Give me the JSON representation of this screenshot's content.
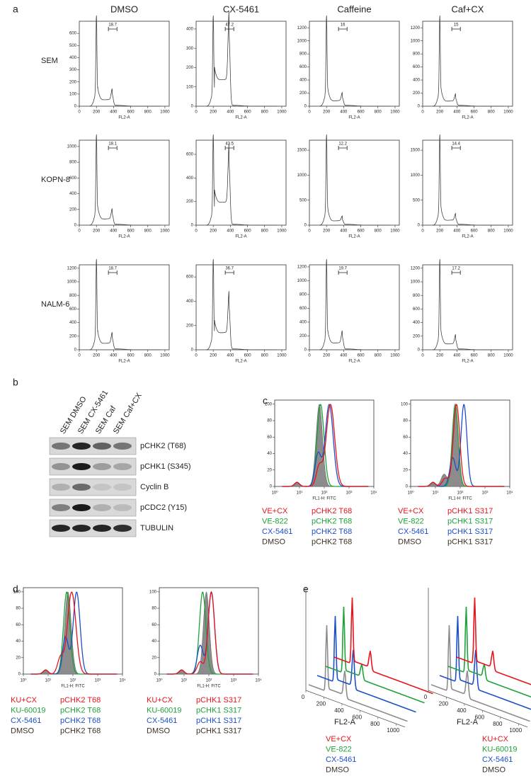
{
  "panel_a": {
    "label": "a",
    "columns": [
      "DMSO",
      "CX-5461",
      "Caffeine",
      "Caf+CX"
    ],
    "x_label": "FL2-A",
    "xlim": [
      0,
      1050
    ],
    "xticks": [
      0,
      200,
      400,
      600,
      800,
      1000
    ],
    "rows": [
      {
        "label": "SEM",
        "plots": [
          {
            "ylim": [
              0,
              700
            ],
            "yticks": [
              0,
              100,
              200,
              300,
              400,
              500,
              600
            ],
            "gate": "18.7"
          },
          {
            "ylim": [
              0,
              440
            ],
            "yticks": [
              0,
              100,
              200,
              300,
              400
            ],
            "gate": "47.2"
          },
          {
            "ylim": [
              0,
              1300
            ],
            "yticks": [
              0,
              200,
              400,
              600,
              800,
              1000,
              1200
            ],
            "gate": "16"
          },
          {
            "ylim": [
              0,
              1300
            ],
            "yticks": [
              0,
              200,
              400,
              600,
              800,
              1000,
              1200
            ],
            "gate": "15"
          }
        ]
      },
      {
        "label": "KOPN-8",
        "plots": [
          {
            "ylim": [
              0,
              1080
            ],
            "yticks": [
              0,
              200,
              400,
              600,
              800,
              1000
            ],
            "gate": "18.1"
          },
          {
            "ylim": [
              0,
              720
            ],
            "yticks": [
              0,
              200,
              400,
              600
            ],
            "gate": "43.5"
          },
          {
            "ylim": [
              0,
              1700
            ],
            "yticks": [
              0,
              500,
              1000,
              1500
            ],
            "gate": "12.2"
          },
          {
            "ylim": [
              0,
              1700
            ],
            "yticks": [
              0,
              500,
              1000,
              1500
            ],
            "gate": "14.4"
          }
        ]
      },
      {
        "label": "NALM-6",
        "plots": [
          {
            "ylim": [
              0,
              1250
            ],
            "yticks": [
              0,
              200,
              400,
              600,
              800,
              1000,
              1200
            ],
            "gate": "18.7"
          },
          {
            "ylim": [
              0,
              700
            ],
            "yticks": [
              0,
              200,
              400,
              600
            ],
            "gate": "36.7"
          },
          {
            "ylim": [
              0,
              1230
            ],
            "yticks": [
              0,
              200,
              400,
              600,
              800,
              1000,
              1200
            ],
            "gate": "19.7"
          },
          {
            "ylim": [
              0,
              1250
            ],
            "yticks": [
              0,
              200,
              400,
              600,
              800,
              1000,
              1200
            ],
            "gate": "17.2"
          }
        ]
      }
    ]
  },
  "panel_b": {
    "label": "b",
    "lanes": [
      "SEM DMSO",
      "SEM CX-5461",
      "SEM Caf",
      "SEM Caf+CX"
    ],
    "bands": [
      "pCHK2 (T68)",
      "pCHK1 (S345)",
      "Cyclin B",
      "pCDC2 (Y15)",
      "TUBULIN"
    ]
  },
  "panel_c": {
    "label": "c",
    "x_label": "FL1-H: FITC",
    "xlim": [
      0,
      4
    ],
    "ylim": [
      0,
      105
    ],
    "xticks": [
      {
        "value": 0,
        "label": "10⁰"
      },
      {
        "value": 1,
        "label": "10¹"
      },
      {
        "value": 2,
        "label": "10²"
      },
      {
        "value": 3,
        "label": "10³"
      },
      {
        "value": 4,
        "label": "10⁴"
      }
    ],
    "yticks": [
      0,
      20,
      40,
      60,
      80,
      100
    ],
    "plots": [
      {
        "legend": [
          {
            "sample": "VE+CX",
            "target": "pCHK2 T68",
            "color": "#e8141c"
          },
          {
            "sample": "VE-822",
            "target": "pCHK2 T68",
            "color": "#1fa23a"
          },
          {
            "sample": "CX-5461",
            "target": "pCHK2 T68",
            "color": "#1d4fc8"
          },
          {
            "sample": "DMSO",
            "target": "pCHK2 T68",
            "color": "#3b3024"
          }
        ]
      },
      {
        "legend": [
          {
            "sample": "VE+CX",
            "target": "pCHK1 S317",
            "color": "#e8141c"
          },
          {
            "sample": "VE-822",
            "target": "pCHK1 S317",
            "color": "#1fa23a"
          },
          {
            "sample": "CX-5461",
            "target": "pCHK1 S317",
            "color": "#1d4fc8"
          },
          {
            "sample": "DMSO",
            "target": "pCHK1 S317",
            "color": "#3b3024"
          }
        ]
      }
    ]
  },
  "panel_d": {
    "label": "d",
    "x_label": "FL1-H: FITC",
    "xlim": [
      0,
      4
    ],
    "ylim": [
      0,
      105
    ],
    "xticks": [
      {
        "value": 0,
        "label": "10⁰"
      },
      {
        "value": 1,
        "label": "10¹"
      },
      {
        "value": 2,
        "label": "10²"
      },
      {
        "value": 3,
        "label": "10³"
      },
      {
        "value": 4,
        "label": "10⁴"
      }
    ],
    "yticks": [
      0,
      20,
      40,
      60,
      80,
      100
    ],
    "plots": [
      {
        "legend": [
          {
            "sample": "KU+CX",
            "target": "pCHK2 T68",
            "color": "#e8141c"
          },
          {
            "sample": "KU-60019",
            "target": "pCHK2 T68",
            "color": "#1fa23a"
          },
          {
            "sample": "CX-5461",
            "target": "pCHK2 T68",
            "color": "#1d4fc8"
          },
          {
            "sample": "DMSO",
            "target": "pCHK2 T68",
            "color": "#3b3024"
          }
        ]
      },
      {
        "legend": [
          {
            "sample": "KU+CX",
            "target": "pCHK1 S317",
            "color": "#e8141c"
          },
          {
            "sample": "KU-60019",
            "target": "pCHK1 S317",
            "color": "#1fa23a"
          },
          {
            "sample": "CX-5461",
            "target": "pCHK1 S317",
            "color": "#1d4fc8"
          },
          {
            "sample": "DMSO",
            "target": "pCHK1 S317",
            "color": "#3b3024"
          }
        ]
      }
    ]
  },
  "panel_e": {
    "label": "e",
    "x_label": "FL2-A",
    "xlim": [
      0,
      1100
    ],
    "xticks": [
      0,
      200,
      400,
      600,
      800,
      1000
    ],
    "plots": [
      {
        "legend": [
          {
            "name": "VE+CX",
            "color": "#e8141c"
          },
          {
            "name": "VE-822",
            "color": "#1fa23a"
          },
          {
            "name": "CX-5461",
            "color": "#1d4fc8"
          },
          {
            "name": "DMSO",
            "color": "#3b3024"
          }
        ]
      },
      {
        "legend": [
          {
            "name": "KU+CX",
            "color": "#e8141c"
          },
          {
            "name": "KU-60019",
            "color": "#1fa23a"
          },
          {
            "name": "CX-5461",
            "color": "#1d4fc8"
          },
          {
            "name": "DMSO",
            "color": "#3b3024"
          }
        ]
      }
    ]
  }
}
